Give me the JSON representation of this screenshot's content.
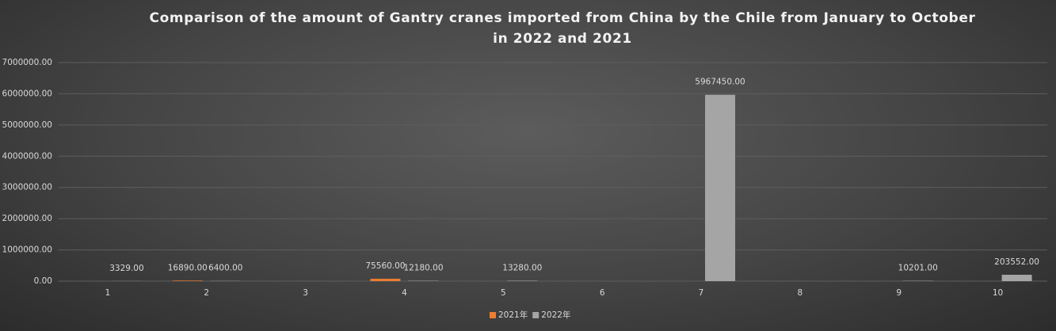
{
  "chart_data": {
    "type": "bar",
    "title": "Comparison of the amount of Gantry cranes imported from China by the Chile from January to October in 2022 and 2021",
    "categories": [
      "1",
      "2",
      "3",
      "4",
      "5",
      "6",
      "7",
      "8",
      "9",
      "10"
    ],
    "series": [
      {
        "name": "2021年",
        "color": "#ed7d31",
        "values": [
          null,
          16890,
          null,
          75560,
          null,
          null,
          null,
          null,
          null,
          null
        ],
        "value_labels": [
          null,
          "16890.00",
          null,
          "75560.00",
          null,
          null,
          null,
          null,
          null,
          null
        ]
      },
      {
        "name": "2022年",
        "color": "#a5a5a5",
        "values": [
          3329,
          6400,
          null,
          12180,
          13280,
          null,
          5967450,
          null,
          10201,
          203552
        ],
        "value_labels": [
          "3329.00",
          "6400.00",
          null,
          "12180.00",
          "13280.00",
          null,
          "5967450.00",
          null,
          "10201.00",
          "203552.00"
        ]
      }
    ],
    "ylim": [
      0,
      7000000
    ],
    "yticks": [
      {
        "value": 0,
        "label": "0.00"
      },
      {
        "value": 1000000,
        "label": "1000000.00"
      },
      {
        "value": 2000000,
        "label": "2000000.00"
      },
      {
        "value": 3000000,
        "label": "3000000.00"
      },
      {
        "value": 4000000,
        "label": "4000000.00"
      },
      {
        "value": 5000000,
        "label": "5000000.00"
      },
      {
        "value": 6000000,
        "label": "6000000.00"
      },
      {
        "value": 7000000,
        "label": "7000000.00"
      }
    ],
    "grid": true,
    "legend": "bottom"
  }
}
